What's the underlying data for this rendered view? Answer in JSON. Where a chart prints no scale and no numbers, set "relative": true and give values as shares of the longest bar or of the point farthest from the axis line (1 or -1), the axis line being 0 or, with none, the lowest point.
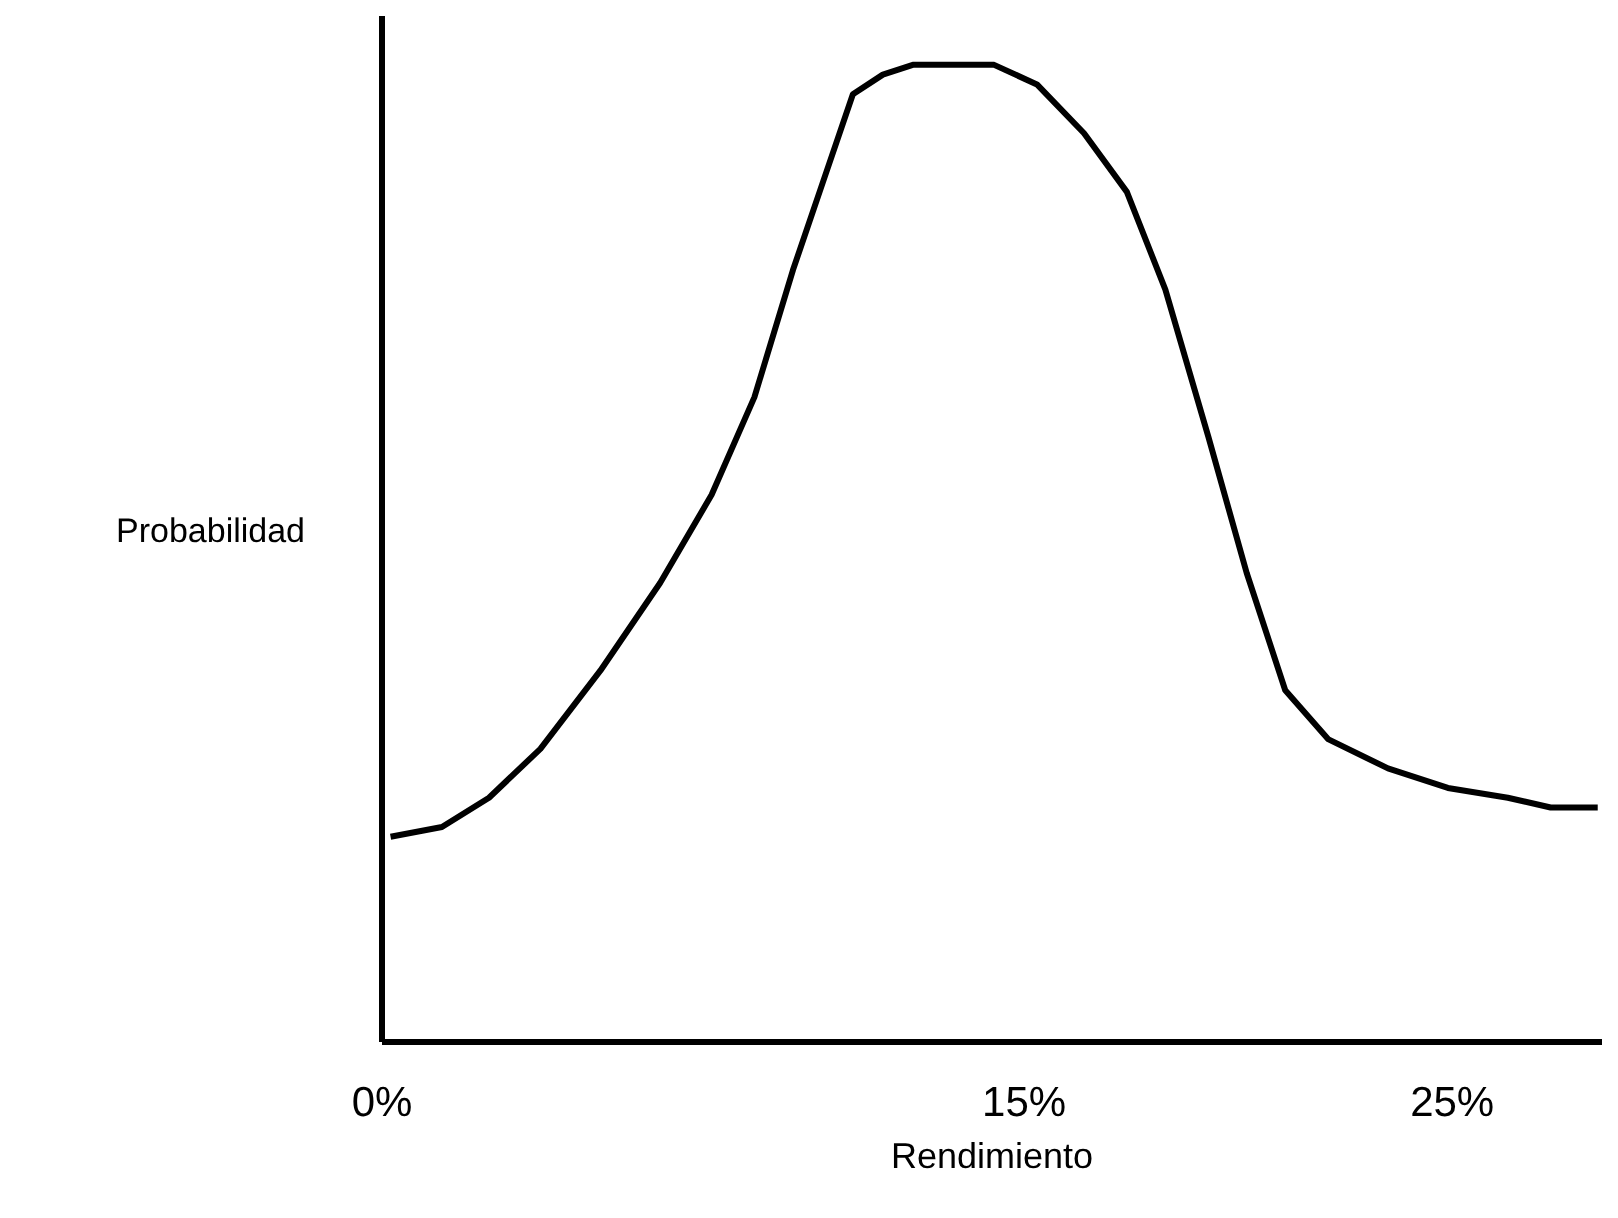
{
  "chart_data": {
    "type": "line",
    "relative": true,
    "xlabel": "Rendimiento",
    "ylabel": "Probabilidad",
    "x": [
      0.2,
      1.4,
      2.5,
      3.7,
      5.1,
      6.5,
      7.7,
      8.7,
      9.6,
      10.3,
      11.0,
      11.7,
      12.4,
      14.3,
      15.3,
      16.4,
      17.4,
      18.3,
      19.3,
      20.2,
      21.1,
      22.1,
      23.5,
      24.9,
      26.3,
      27.3,
      28.4
    ],
    "series": [
      {
        "color": "#000000",
        "values": [
          0.21,
          0.22,
          0.25,
          0.3,
          0.38,
          0.47,
          0.56,
          0.66,
          0.79,
          0.88,
          0.97,
          0.99,
          1,
          1,
          0.98,
          0.93,
          0.87,
          0.77,
          0.62,
          0.48,
          0.36,
          0.31,
          0.28,
          0.26,
          0.25,
          0.24,
          0.24
        ]
      }
    ],
    "xlim": [
      0,
      28.5
    ],
    "xticks": [
      {
        "value": 0,
        "label": "0%"
      },
      {
        "value": 15,
        "label": "15%"
      },
      {
        "value": 25,
        "label": "25%"
      }
    ],
    "grid": false,
    "legend": false,
    "marker": "none",
    "line_style": "solid"
  }
}
